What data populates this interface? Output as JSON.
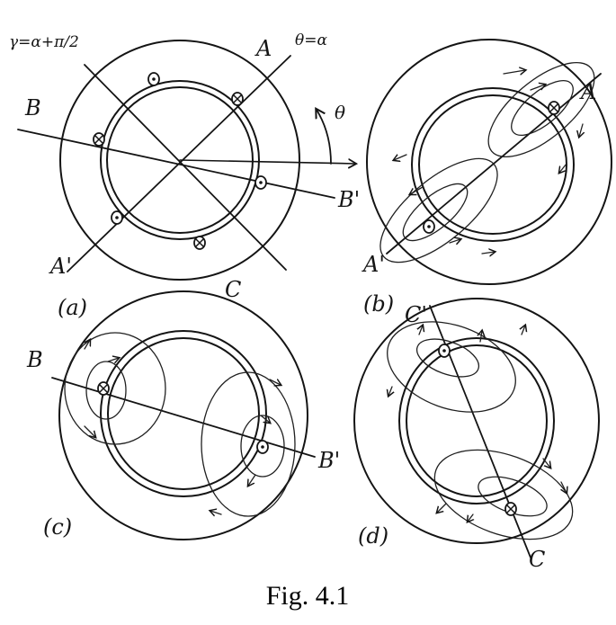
{
  "figure": {
    "caption": "Fig. 4.1",
    "panels": {
      "a": {
        "tag": "(a)",
        "angle_labels": {
          "gamma": "γ=α+π/2",
          "theta_eq": "θ=α",
          "theta": "θ"
        },
        "axis_labels": {
          "A": "A",
          "A_prime": "A'",
          "B": "B",
          "B_prime": "B'",
          "C": "C"
        }
      },
      "b": {
        "tag": "(b)",
        "axis_labels": {
          "A": "A",
          "A_prime": "A'"
        }
      },
      "c": {
        "tag": "(c)",
        "axis_labels": {
          "B": "B",
          "B_prime": "B'"
        }
      },
      "d": {
        "tag": "(d)",
        "axis_labels": {
          "C_prime": "C'",
          "C": "C"
        }
      }
    }
  }
}
